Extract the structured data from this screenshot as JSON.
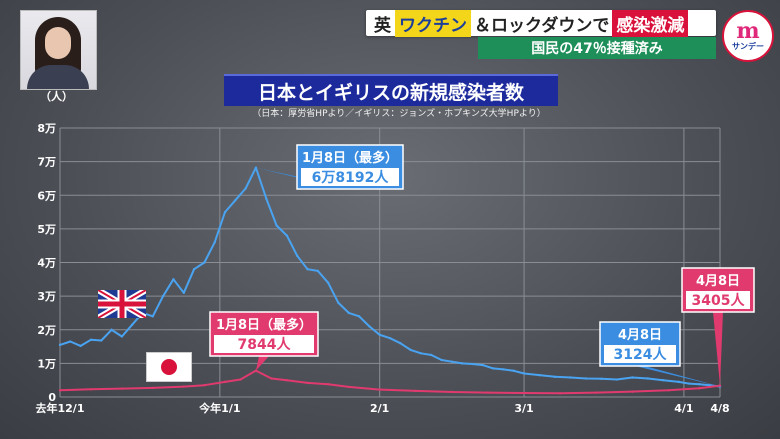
{
  "headline": {
    "part1": "英",
    "part2": "ワクチン",
    "part3": "＆ロックダウンで",
    "part4": "感染激減"
  },
  "subheadline": "国民の47％接種済み",
  "logo": {
    "main": "m",
    "sub": "サンデー"
  },
  "chart_data": {
    "type": "line",
    "title": "日本とイギリスの新規感染者数",
    "subtitle": "（日本：厚労省HPより／イギリス：ジョンズ・ホプキンズ大学HPより）",
    "ylabel": "（人）",
    "ylim": [
      0,
      80000
    ],
    "yticks": [
      {
        "value": 0,
        "label": "0"
      },
      {
        "value": 10000,
        "label": "1万"
      },
      {
        "value": 20000,
        "label": "2万"
      },
      {
        "value": 30000,
        "label": "3万"
      },
      {
        "value": 40000,
        "label": "4万"
      },
      {
        "value": 50000,
        "label": "5万"
      },
      {
        "value": 60000,
        "label": "6万"
      },
      {
        "value": 70000,
        "label": "7万"
      },
      {
        "value": 80000,
        "label": "8万"
      }
    ],
    "xlim": [
      "2020-12-01",
      "2021-04-08"
    ],
    "xticks": [
      {
        "date": "2020-12-01",
        "label": "去年12/1"
      },
      {
        "date": "2021-01-01",
        "label": "今年1/1"
      },
      {
        "date": "2021-02-01",
        "label": "2/1"
      },
      {
        "date": "2021-03-01",
        "label": "3/1"
      },
      {
        "date": "2021-04-01",
        "label": "4/1"
      },
      {
        "date": "2021-04-08",
        "label": "4/8"
      }
    ],
    "grid": true,
    "series": [
      {
        "name": "イギリス",
        "color": "#4aa3f0",
        "flag": "uk-flag",
        "points": [
          [
            "2020-12-01",
            15500
          ],
          [
            "2020-12-03",
            16500
          ],
          [
            "2020-12-05",
            15200
          ],
          [
            "2020-12-07",
            17000
          ],
          [
            "2020-12-09",
            16800
          ],
          [
            "2020-12-11",
            20000
          ],
          [
            "2020-12-13",
            18000
          ],
          [
            "2020-12-15",
            21500
          ],
          [
            "2020-12-17",
            25000
          ],
          [
            "2020-12-19",
            24000
          ],
          [
            "2020-12-21",
            30000
          ],
          [
            "2020-12-23",
            35000
          ],
          [
            "2020-12-25",
            31000
          ],
          [
            "2020-12-27",
            38000
          ],
          [
            "2020-12-29",
            40000
          ],
          [
            "2020-12-31",
            46000
          ],
          [
            "2021-01-02",
            55000
          ],
          [
            "2021-01-04",
            58500
          ],
          [
            "2021-01-06",
            62000
          ],
          [
            "2021-01-08",
            68192
          ],
          [
            "2021-01-10",
            59000
          ],
          [
            "2021-01-12",
            51000
          ],
          [
            "2021-01-14",
            48000
          ],
          [
            "2021-01-16",
            42000
          ],
          [
            "2021-01-18",
            38000
          ],
          [
            "2021-01-20",
            37500
          ],
          [
            "2021-01-22",
            34000
          ],
          [
            "2021-01-24",
            28000
          ],
          [
            "2021-01-26",
            25000
          ],
          [
            "2021-01-28",
            24000
          ],
          [
            "2021-01-30",
            21000
          ],
          [
            "2021-02-01",
            18500
          ],
          [
            "2021-02-03",
            17500
          ],
          [
            "2021-02-05",
            16000
          ],
          [
            "2021-02-07",
            14000
          ],
          [
            "2021-02-09",
            13000
          ],
          [
            "2021-02-11",
            12500
          ],
          [
            "2021-02-13",
            11000
          ],
          [
            "2021-02-15",
            10500
          ],
          [
            "2021-02-17",
            10000
          ],
          [
            "2021-02-19",
            9800
          ],
          [
            "2021-02-21",
            9500
          ],
          [
            "2021-02-23",
            8500
          ],
          [
            "2021-02-25",
            8200
          ],
          [
            "2021-02-27",
            7800
          ],
          [
            "2021-03-01",
            7000
          ],
          [
            "2021-03-04",
            6500
          ],
          [
            "2021-03-07",
            6000
          ],
          [
            "2021-03-10",
            5800
          ],
          [
            "2021-03-13",
            5500
          ],
          [
            "2021-03-16",
            5400
          ],
          [
            "2021-03-19",
            5200
          ],
          [
            "2021-03-22",
            5800
          ],
          [
            "2021-03-25",
            5500
          ],
          [
            "2021-03-28",
            5000
          ],
          [
            "2021-03-31",
            4500
          ],
          [
            "2021-04-02",
            4000
          ],
          [
            "2021-04-04",
            3800
          ],
          [
            "2021-04-06",
            3500
          ],
          [
            "2021-04-08",
            3124
          ]
        ]
      },
      {
        "name": "日本",
        "color": "#e03a6e",
        "flag": "japan-flag",
        "points": [
          [
            "2020-12-01",
            2000
          ],
          [
            "2020-12-07",
            2300
          ],
          [
            "2020-12-13",
            2500
          ],
          [
            "2020-12-19",
            2700
          ],
          [
            "2020-12-25",
            3100
          ],
          [
            "2020-12-29",
            3500
          ],
          [
            "2021-01-02",
            4500
          ],
          [
            "2021-01-05",
            5200
          ],
          [
            "2021-01-08",
            7844
          ],
          [
            "2021-01-11",
            5500
          ],
          [
            "2021-01-14",
            5000
          ],
          [
            "2021-01-18",
            4200
          ],
          [
            "2021-01-22",
            3800
          ],
          [
            "2021-01-26",
            3000
          ],
          [
            "2021-02-01",
            2200
          ],
          [
            "2021-02-08",
            1800
          ],
          [
            "2021-02-15",
            1500
          ],
          [
            "2021-02-22",
            1300
          ],
          [
            "2021-03-01",
            1200
          ],
          [
            "2021-03-08",
            1100
          ],
          [
            "2021-03-15",
            1300
          ],
          [
            "2021-03-22",
            1600
          ],
          [
            "2021-03-29",
            2000
          ],
          [
            "2021-04-04",
            2600
          ],
          [
            "2021-04-08",
            3405
          ]
        ]
      }
    ],
    "annotations": [
      {
        "series": "イギリス",
        "line1": "1月8日（最多）",
        "line2": "6万8192人"
      },
      {
        "series": "日本",
        "line1": "1月8日（最多）",
        "line2": "7844人"
      },
      {
        "series": "イギリス",
        "line1": "4月8日",
        "line2": "3124人"
      },
      {
        "series": "日本",
        "line1": "4月8日",
        "line2": "3405人"
      }
    ]
  }
}
